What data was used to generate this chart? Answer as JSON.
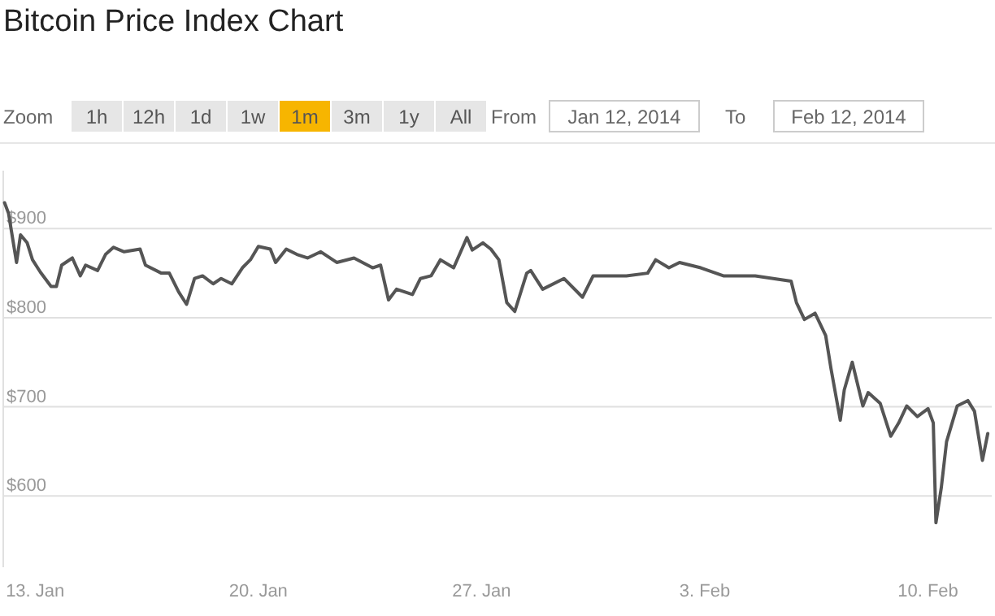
{
  "chart_data": {
    "type": "line",
    "title": "Bitcoin Price Index Chart",
    "annotations": [
      "Zoom",
      "1h",
      "12h",
      "1d",
      "1w",
      "1m",
      "3m",
      "1y",
      "All",
      "From",
      "Jan 12, 2014",
      "To",
      "Feb 12, 2014"
    ],
    "xlim": [
      "2014-01-12T00:00",
      "2014-02-12T00:00"
    ],
    "xticks": [
      {
        "value": "2014-01-13",
        "label": "13. Jan"
      },
      {
        "value": "2014-01-20",
        "label": "20. Jan"
      },
      {
        "value": "2014-01-27",
        "label": "27. Jan"
      },
      {
        "value": "2014-02-03",
        "label": "3. Feb"
      },
      {
        "value": "2014-02-10",
        "label": "10. Feb"
      }
    ],
    "ylim": [
      520,
      965
    ],
    "yticks": [
      {
        "value": 600,
        "label": "$600"
      },
      {
        "value": 700,
        "label": "$700"
      },
      {
        "value": 800,
        "label": "$800"
      },
      {
        "value": 900,
        "label": "$900"
      }
    ],
    "grid": "y",
    "marker": "none",
    "line_style": "solid",
    "series": [
      {
        "color": "#555555",
        "x": [
          "2014-01-12T01:00",
          "2014-01-12T04:00",
          "2014-01-12T10:00",
          "2014-01-12T13:00",
          "2014-01-12T18:00",
          "2014-01-12T22:00",
          "2014-01-13T04:00",
          "2014-01-13T12:00",
          "2014-01-13T16:00",
          "2014-01-13T20:00",
          "2014-01-14T04:00",
          "2014-01-14T10:00",
          "2014-01-14T14:00",
          "2014-01-14T23:00",
          "2014-01-15T05:00",
          "2014-01-15T11:00",
          "2014-01-15T19:00",
          "2014-01-16T07:00",
          "2014-01-16T11:00",
          "2014-01-16T23:00",
          "2014-01-17T05:00",
          "2014-01-17T12:00",
          "2014-01-17T18:00",
          "2014-01-18T00:00",
          "2014-01-18T06:00",
          "2014-01-18T14:00",
          "2014-01-18T20:00",
          "2014-01-19T04:00",
          "2014-01-19T12:00",
          "2014-01-19T18:00",
          "2014-01-20T00:00",
          "2014-01-20T09:00",
          "2014-01-20T13:00",
          "2014-01-20T21:00",
          "2014-01-21T05:00",
          "2014-01-21T13:00",
          "2014-01-21T23:00",
          "2014-01-22T11:00",
          "2014-01-23T00:00",
          "2014-01-23T14:00",
          "2014-01-23T20:00",
          "2014-01-24T02:00",
          "2014-01-24T08:00",
          "2014-01-24T20:00",
          "2014-01-25T02:00",
          "2014-01-25T10:00",
          "2014-01-25T17:00",
          "2014-01-26T03:00",
          "2014-01-26T13:00",
          "2014-01-26T17:00",
          "2014-01-27T01:00",
          "2014-01-27T07:00",
          "2014-01-27T13:00",
          "2014-01-27T19:00",
          "2014-01-28T01:00",
          "2014-01-28T10:00",
          "2014-01-28T13:00",
          "2014-01-28T22:00",
          "2014-01-29T14:00",
          "2014-01-30T04:00",
          "2014-01-30T12:00",
          "2014-01-31T13:00",
          "2014-02-01T05:00",
          "2014-02-01T11:00",
          "2014-02-01T21:00",
          "2014-02-02T05:00",
          "2014-02-02T21:00",
          "2014-02-03T14:00",
          "2014-02-04T14:00",
          "2014-02-05T17:00",
          "2014-02-05T21:00",
          "2014-02-06T03:00",
          "2014-02-06T11:00",
          "2014-02-06T19:00",
          "2014-02-06T23:00",
          "2014-02-07T06:00",
          "2014-02-07T09:00",
          "2014-02-07T15:00",
          "2014-02-07T23:00",
          "2014-02-08T03:00",
          "2014-02-08T12:00",
          "2014-02-08T20:00",
          "2014-02-09T02:00",
          "2014-02-09T08:00",
          "2014-02-09T16:00",
          "2014-02-10T00:00",
          "2014-02-10T04:00",
          "2014-02-10T06:00",
          "2014-02-10T10:00",
          "2014-02-10T14:00",
          "2014-02-10T22:00",
          "2014-02-11T06:00",
          "2014-02-11T11:00",
          "2014-02-11T17:00",
          "2014-02-11T21:00"
        ],
        "values": [
          929,
          917,
          862,
          893,
          884,
          865,
          851,
          835,
          835,
          859,
          867,
          847,
          859,
          853,
          871,
          879,
          874,
          877,
          859,
          850,
          850,
          829,
          815,
          844,
          847,
          838,
          844,
          838,
          856,
          865,
          880,
          877,
          862,
          877,
          871,
          867,
          874,
          862,
          867,
          856,
          859,
          820,
          832,
          826,
          844,
          847,
          865,
          856,
          890,
          876,
          884,
          877,
          865,
          817,
          807,
          850,
          853,
          832,
          844,
          823,
          847,
          847,
          850,
          865,
          856,
          862,
          856,
          847,
          847,
          841,
          817,
          798,
          805,
          780,
          743,
          685,
          719,
          750,
          701,
          716,
          704,
          667,
          682,
          701,
          689,
          698,
          682,
          570,
          609,
          661,
          701,
          707,
          695,
          640,
          670
        ]
      }
    ]
  }
}
